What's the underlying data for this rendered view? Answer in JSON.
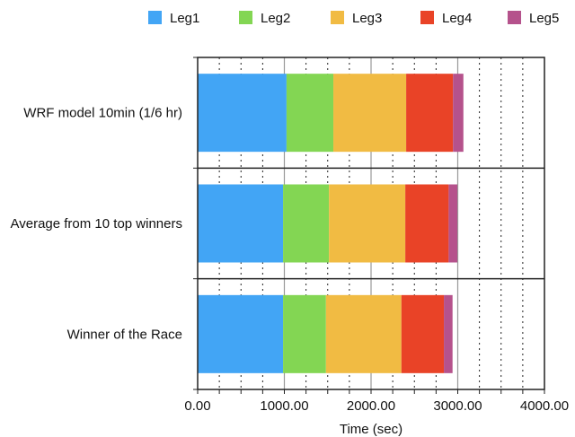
{
  "chart_data": {
    "type": "bar",
    "orientation": "horizontal",
    "stacked": true,
    "categories": [
      "WRF  model 10min (1/6 hr)",
      "Average from 10 top winners",
      "Winner of the Race"
    ],
    "series": [
      {
        "name": "Leg1",
        "color": "#42a5f5",
        "values": [
          1025,
          985,
          985
        ]
      },
      {
        "name": "Leg2",
        "color": "#83d653",
        "values": [
          540,
          530,
          495
        ]
      },
      {
        "name": "Leg3",
        "color": "#f1bb43",
        "values": [
          840,
          880,
          870
        ]
      },
      {
        "name": "Leg4",
        "color": "#e94327",
        "values": [
          540,
          500,
          490
        ]
      },
      {
        "name": "Leg5",
        "color": "#b5528c",
        "values": [
          120,
          100,
          100
        ]
      }
    ],
    "xlabel": "Time (sec)",
    "ylabel": "",
    "xlim": [
      0,
      4000
    ],
    "xticks": [
      "0.00",
      "1000.00",
      "2000.00",
      "3000.00",
      "4000.00"
    ],
    "grid": "vertical (solid major, dotted minor)",
    "legend_position": "top"
  }
}
